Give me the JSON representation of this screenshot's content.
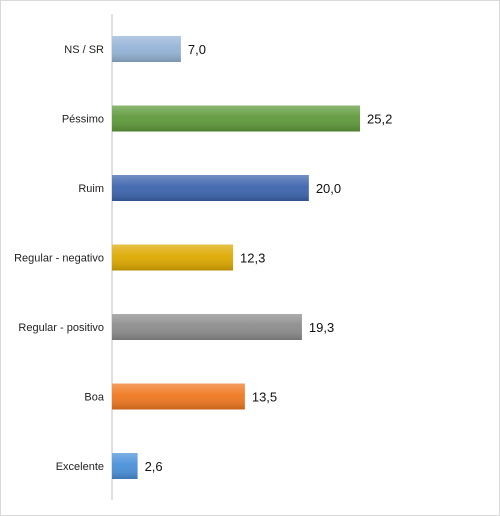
{
  "chart_data": {
    "type": "bar",
    "orientation": "horizontal",
    "categories": [
      "NS / SR",
      "Péssimo",
      "Ruim",
      "Regular - negativo",
      "Regular - positivo",
      "Boa",
      "Excelente"
    ],
    "values": [
      7.0,
      25.2,
      20.0,
      12.3,
      19.3,
      13.5,
      2.6
    ],
    "value_labels": [
      "7,0",
      "25,2",
      "20,0",
      "12,3",
      "19,3",
      "13,5",
      "2,6"
    ],
    "colors": [
      "#95b3d7",
      "#5f9a3b",
      "#3c64ad",
      "#dea900",
      "#8c8c8c",
      "#f07820",
      "#4a90d9"
    ],
    "xlim": [
      0,
      30
    ],
    "grid": false,
    "legend": "none"
  }
}
